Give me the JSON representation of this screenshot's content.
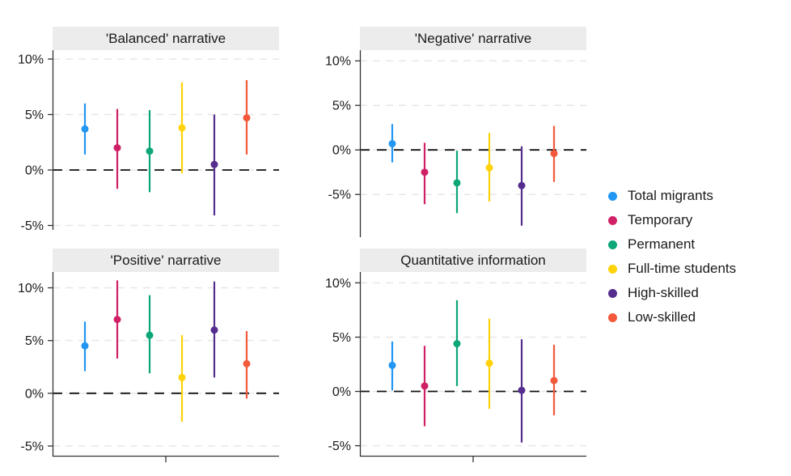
{
  "chart_data": {
    "type": "pointrange",
    "title": "",
    "units": "percentage points",
    "grid": "horizontal dashed gridlines at y breaks, zero reference as black dashed line",
    "legend_position": "right",
    "x_axis": {
      "single_center_tick": true,
      "tick_labels_visible": false
    },
    "y_breaks": [
      10,
      5,
      0,
      -5
    ],
    "y_tick_labels": [
      "10%",
      "5%",
      "0%",
      "-5%"
    ],
    "colors": {
      "axis": "#333333",
      "grid": "#e7e7e7",
      "zero_line": "#111111",
      "strip_background": "#ececec"
    },
    "series": [
      {
        "name": "Total migrants",
        "color": "#2196f3"
      },
      {
        "name": "Temporary",
        "color": "#d02166"
      },
      {
        "name": "Permanent",
        "color": "#0ca678"
      },
      {
        "name": "Full-time students",
        "color": "#ffd20a"
      },
      {
        "name": "High-skilled",
        "color": "#542d8f"
      },
      {
        "name": "Low-skilled",
        "color": "#f4593b"
      }
    ],
    "panels": [
      {
        "title": "'Balanced' narrative",
        "ylim": [
          -5.4,
          10.8
        ],
        "points": [
          {
            "series": "Total migrants",
            "value": 3.7,
            "lo": 1.4,
            "hi": 6.0
          },
          {
            "series": "Temporary",
            "value": 2.0,
            "lo": -1.7,
            "hi": 5.5
          },
          {
            "series": "Permanent",
            "value": 1.7,
            "lo": -2.0,
            "hi": 5.4
          },
          {
            "series": "Full-time students",
            "value": 3.8,
            "lo": -0.3,
            "hi": 7.9
          },
          {
            "series": "High-skilled",
            "value": 0.5,
            "lo": -4.1,
            "hi": 5.0
          },
          {
            "series": "Low-skilled",
            "value": 4.7,
            "lo": 1.4,
            "hi": 8.1
          }
        ]
      },
      {
        "title": "'Negative' narrative",
        "ylim": [
          -9.8,
          11.2
        ],
        "points": [
          {
            "series": "Total migrants",
            "value": 0.7,
            "lo": -1.4,
            "hi": 2.9
          },
          {
            "series": "Temporary",
            "value": -2.5,
            "lo": -6.1,
            "hi": 0.8
          },
          {
            "series": "Permanent",
            "value": -3.7,
            "lo": -7.1,
            "hi": -0.1
          },
          {
            "series": "Full-time students",
            "value": -2.0,
            "lo": -5.8,
            "hi": 1.9
          },
          {
            "series": "High-skilled",
            "value": -4.0,
            "lo": -8.5,
            "hi": 0.4
          },
          {
            "series": "Low-skilled",
            "value": -0.4,
            "lo": -3.6,
            "hi": 2.7
          }
        ]
      },
      {
        "title": "'Positive' narrative",
        "ylim": [
          -6.0,
          11.5
        ],
        "points": [
          {
            "series": "Total migrants",
            "value": 4.5,
            "lo": 2.1,
            "hi": 6.8
          },
          {
            "series": "Temporary",
            "value": 7.0,
            "lo": 3.3,
            "hi": 10.7
          },
          {
            "series": "Permanent",
            "value": 5.5,
            "lo": 1.9,
            "hi": 9.3
          },
          {
            "series": "Full-time students",
            "value": 1.5,
            "lo": -2.7,
            "hi": 5.5
          },
          {
            "series": "High-skilled",
            "value": 6.0,
            "lo": 1.5,
            "hi": 10.6
          },
          {
            "series": "Low-skilled",
            "value": 2.8,
            "lo": -0.5,
            "hi": 5.9
          }
        ]
      },
      {
        "title": "Quantitative information",
        "ylim": [
          -6.0,
          11.0
        ],
        "points": [
          {
            "series": "Total migrants",
            "value": 2.4,
            "lo": 0.1,
            "hi": 4.6
          },
          {
            "series": "Temporary",
            "value": 0.5,
            "lo": -3.2,
            "hi": 4.2
          },
          {
            "series": "Permanent",
            "value": 4.4,
            "lo": 0.5,
            "hi": 8.4
          },
          {
            "series": "Full-time students",
            "value": 2.6,
            "lo": -1.6,
            "hi": 6.7
          },
          {
            "series": "High-skilled",
            "value": 0.1,
            "lo": -4.7,
            "hi": 4.8
          },
          {
            "series": "Low-skilled",
            "value": 1.0,
            "lo": -2.2,
            "hi": 4.3
          }
        ]
      }
    ]
  }
}
